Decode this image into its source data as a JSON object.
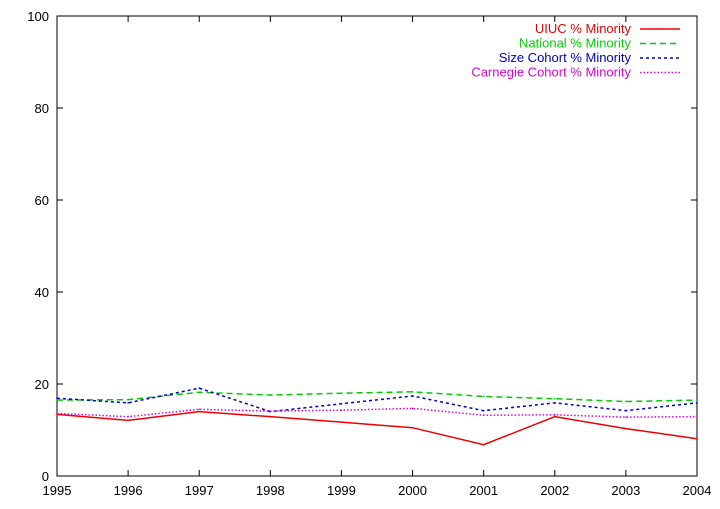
{
  "chart_data": {
    "type": "line",
    "title": "",
    "xlabel": "",
    "ylabel": "",
    "x": [
      1995,
      1996,
      1997,
      1998,
      1999,
      2000,
      2001,
      2002,
      2003,
      2004
    ],
    "xlim": [
      1995,
      2004
    ],
    "ylim": [
      0,
      100
    ],
    "xticks": [
      1995,
      1996,
      1997,
      1998,
      1999,
      2000,
      2001,
      2002,
      2003,
      2004
    ],
    "yticks": [
      0,
      20,
      40,
      60,
      80,
      100
    ],
    "grid": false,
    "legend_position": "top-right",
    "series": [
      {
        "name": "UIUC % Minority",
        "color": "#ee0000",
        "dash": "solid",
        "values": [
          13.4,
          12.1,
          14.0,
          12.9,
          11.7,
          10.5,
          6.8,
          12.9,
          10.3,
          8.1
        ]
      },
      {
        "name": "National % Minority",
        "color": "#00cc00",
        "dash": "dashed",
        "values": [
          16.5,
          16.6,
          18.2,
          17.6,
          18.0,
          18.3,
          17.3,
          16.8,
          16.2,
          16.5
        ]
      },
      {
        "name": "Size Cohort % Minority",
        "color": "#0000cc",
        "dash": "dotted-dense",
        "values": [
          16.9,
          15.9,
          19.1,
          14.0,
          15.7,
          17.4,
          14.2,
          15.9,
          14.2,
          15.9
        ]
      },
      {
        "name": "Carnegie Cohort % Minority",
        "color": "#dd00dd",
        "dash": "dotted",
        "values": [
          13.6,
          12.9,
          14.5,
          14.1,
          14.3,
          14.7,
          13.2,
          13.3,
          12.8,
          12.9
        ]
      }
    ]
  }
}
